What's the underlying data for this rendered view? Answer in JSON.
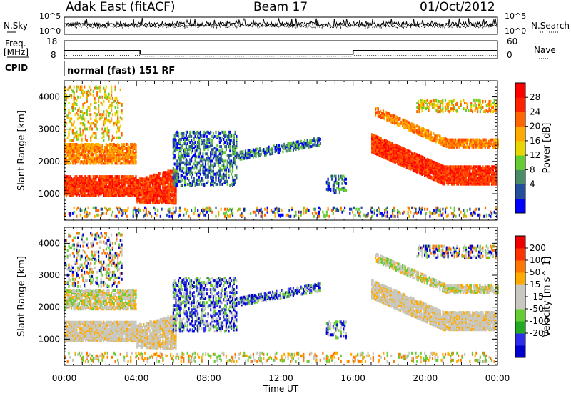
{
  "header": {
    "station": "Adak East (fitACF)",
    "beam": "Beam 17",
    "date": "01/Oct/2012"
  },
  "panel_labels": {
    "nsky_label": "N.Sky",
    "nsearch_label": "N.Search",
    "nsky_ticks": [
      "10^5",
      "10^0"
    ],
    "nsearch_ticks": [
      "10^5",
      "10^0"
    ],
    "freq_label_1": "Freq.",
    "freq_label_2": "[MHz]",
    "freq_ticks": [
      "18",
      "8"
    ],
    "nave_label": "Nave",
    "nave_ticks": [
      "60",
      "0"
    ],
    "cpid_label": "CPID",
    "cpid_text": "normal (fast) 151 RF"
  },
  "chart_data": [
    {
      "type": "line",
      "name": "sounding-panel",
      "x": [
        0,
        4.2,
        4.2,
        16.0,
        16.0,
        24
      ],
      "freq_mhz": [
        12.5,
        12.5,
        10.5,
        10.5,
        12.5,
        12.5
      ],
      "freq_ylim": [
        8,
        18
      ],
      "nave": [
        10,
        10,
        8,
        8,
        10,
        10
      ],
      "nave_ylim": [
        0,
        60
      ],
      "nsky_level": "10^2",
      "xlim": [
        0,
        24
      ]
    },
    {
      "type": "heatmap",
      "name": "power",
      "xlabel": "",
      "ylabel": "Slant Range [km]",
      "xlim": [
        0,
        24
      ],
      "ylim": [
        180,
        4500
      ],
      "yticks": [
        "1000",
        "2000",
        "3000",
        "4000"
      ],
      "colorbar_label": "Power [dB]",
      "colorbar_ticks": [
        "28",
        "24",
        "20",
        "16",
        "12",
        "8",
        "4"
      ],
      "colorbar_colors": [
        "#0000ff",
        "#234f9c",
        "#4a8c68",
        "#66cc33",
        "#e8d600",
        "#ffaa00",
        "#ff6600",
        "#ff2200",
        "#ff0000"
      ]
    },
    {
      "type": "heatmap",
      "name": "velocity",
      "xlabel": "Time UT",
      "ylabel": "Slant Range [km]",
      "xlim": [
        0,
        24
      ],
      "ylim": [
        180,
        4500
      ],
      "xticks": [
        "00:00",
        "04:00",
        "08:00",
        "12:00",
        "16:00",
        "20:00",
        "00:00"
      ],
      "yticks": [
        "1000",
        "2000",
        "3000",
        "4000"
      ],
      "colorbar_label": "Velocity [m s^-1]",
      "colorbar_ticks": [
        "200",
        "100",
        "50",
        "15",
        "-15",
        "-50",
        "-100",
        "-200"
      ],
      "colorbar_colors": [
        "#0000cc",
        "#2d2dea",
        "#22aa22",
        "#66cc33",
        "#c8c8c0",
        "#c8c8c0",
        "#ffaa00",
        "#ff7700",
        "#ff3300",
        "#ee0000"
      ]
    }
  ]
}
